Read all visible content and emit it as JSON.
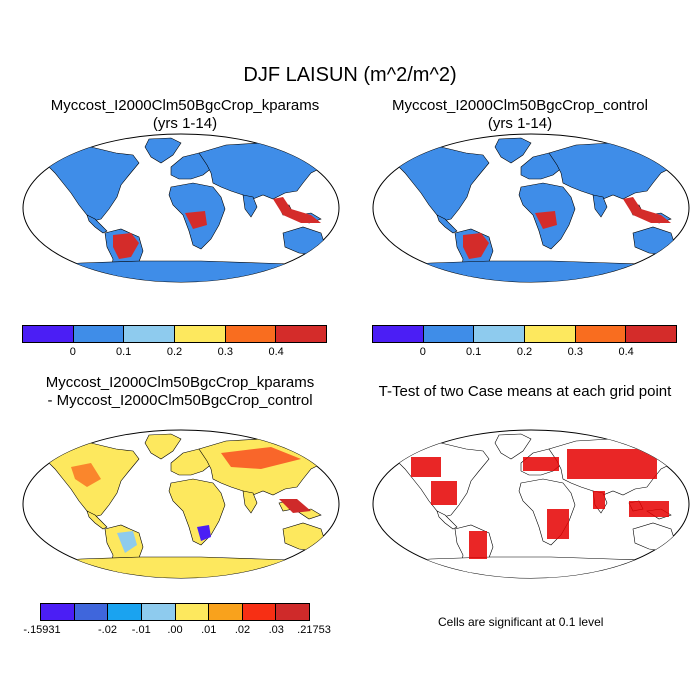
{
  "title": "DJF LAISUN (m^2/m^2)",
  "panels": [
    {
      "title_line1": "Myccost_I2000Clm50BgcCrop_kparams",
      "title_line2": "(yrs 1-14)"
    },
    {
      "title_line1": "Myccost_I2000Clm50BgcCrop_control",
      "title_line2": "(yrs 1-14)"
    },
    {
      "title_line1": "Myccost_I2000Clm50BgcCrop_kparams",
      "title_line2": "- Myccost_I2000Clm50BgcCrop_control"
    },
    {
      "title_line1": "T-Test of two Case means at each grid point"
    }
  ],
  "colorbar_top": {
    "colors": [
      "#4b1ef5",
      "#3f8de8",
      "#8ecbee",
      "#fde85e",
      "#f96d1f",
      "#d42c2a"
    ],
    "ticks": [
      "0",
      "0.1",
      "0.2",
      "0.3",
      "0.4"
    ]
  },
  "colorbar_diff": {
    "colors": [
      "#4b1ef5",
      "#3f66dc",
      "#1aa3f0",
      "#8ecbee",
      "#fde85e",
      "#f9a21c",
      "#f72f14",
      "#cf2a2a"
    ],
    "ticks": [
      "-.15931",
      "-.02",
      "-.01",
      ".00",
      ".01",
      ".02",
      ".03",
      ".21753"
    ]
  },
  "significance_note": "Cells are significant at 0.1 level",
  "colors": {
    "significant": "#e60000",
    "land_outline": "#000000"
  }
}
